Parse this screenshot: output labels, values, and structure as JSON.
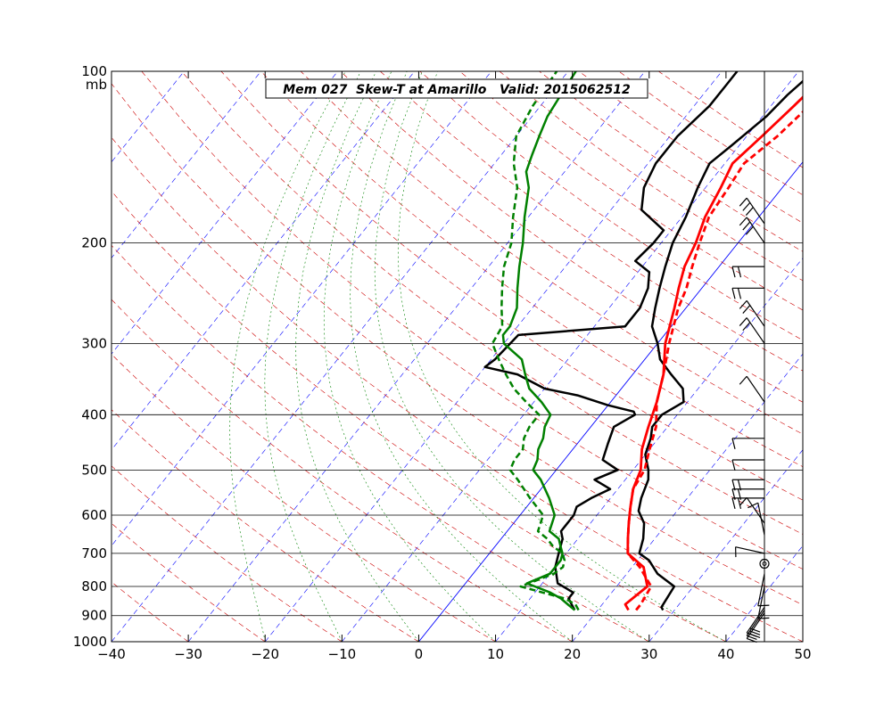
{
  "chart_data": {
    "type": "skew-t",
    "title": "Mem 027  Skew-T at Amarillo   Valid: 2015062512",
    "pressure_unit": "mb",
    "x_range": [
      -40,
      50
    ],
    "x_ticks": [
      -40,
      -30,
      -20,
      -10,
      0,
      10,
      20,
      30,
      40,
      50
    ],
    "pressure_levels": [
      1000,
      900,
      800,
      700,
      600,
      500,
      400,
      300,
      200,
      100
    ],
    "pressure_labels": [
      "100",
      "200",
      "300",
      "400",
      "500",
      "600",
      "700",
      "800",
      "900",
      "1000"
    ],
    "grid_levels": [
      900,
      800,
      700,
      600,
      500,
      400,
      300,
      200
    ],
    "colors": {
      "temperature": "#ff0000",
      "dewpoint": "#008000",
      "ensemble": "#000000",
      "dry_adiabat": "#cc0000",
      "moist_adiabat": "#008000",
      "isotherm": "#0000ff",
      "zero_isotherm": "#0000ff"
    },
    "series": [
      {
        "role": "ensemble-warm",
        "points": [
          [
            880,
            28.5
          ],
          [
            870,
            28
          ],
          [
            800,
            27.5
          ],
          [
            760,
            24
          ],
          [
            720,
            21.5
          ],
          [
            700,
            19.5
          ],
          [
            660,
            18.5
          ],
          [
            620,
            17
          ],
          [
            590,
            15
          ],
          [
            560,
            14
          ],
          [
            520,
            13
          ],
          [
            500,
            12
          ],
          [
            470,
            10
          ],
          [
            440,
            9
          ],
          [
            420,
            8
          ],
          [
            400,
            8
          ],
          [
            380,
            9.5
          ],
          [
            360,
            8
          ],
          [
            340,
            5
          ],
          [
            320,
            2
          ],
          [
            300,
            0
          ],
          [
            280,
            -2.5
          ],
          [
            260,
            -4
          ],
          [
            240,
            -5.5
          ],
          [
            220,
            -7
          ],
          [
            200,
            -8.5
          ],
          [
            180,
            -9.5
          ],
          [
            160,
            -11
          ],
          [
            145,
            -12
          ],
          [
            135,
            -11
          ],
          [
            120,
            -9.5
          ],
          [
            110,
            -9
          ],
          [
            100,
            -8
          ]
        ]
      },
      {
        "role": "ensemble-cold",
        "points": [
          [
            880,
            17
          ],
          [
            860,
            16
          ],
          [
            840,
            15
          ],
          [
            820,
            15
          ],
          [
            790,
            12
          ],
          [
            740,
            10
          ],
          [
            700,
            9
          ],
          [
            660,
            8
          ],
          [
            640,
            7
          ],
          [
            600,
            7
          ],
          [
            580,
            6.5
          ],
          [
            560,
            7.5
          ],
          [
            540,
            9
          ],
          [
            520,
            6
          ],
          [
            500,
            8
          ],
          [
            480,
            5
          ],
          [
            450,
            4
          ],
          [
            420,
            3
          ],
          [
            400,
            4.5
          ],
          [
            395,
            4
          ],
          [
            385,
            0
          ],
          [
            370,
            -5
          ],
          [
            360,
            -10
          ],
          [
            340,
            -15
          ],
          [
            330,
            -20
          ],
          [
            320,
            -19.5
          ],
          [
            290,
            -19
          ],
          [
            280,
            -6
          ],
          [
            260,
            -6
          ],
          [
            240,
            -7
          ],
          [
            225,
            -8.5
          ],
          [
            215,
            -11.5
          ],
          [
            200,
            -11
          ],
          [
            190,
            -11
          ],
          [
            175,
            -16
          ],
          [
            160,
            -18
          ],
          [
            145,
            -19
          ],
          [
            130,
            -19
          ],
          [
            115,
            -18
          ],
          [
            105,
            -18
          ],
          [
            100,
            -18
          ]
        ]
      },
      {
        "role": "temperature",
        "points": [
          [
            880,
            24
          ],
          [
            860,
            23
          ],
          [
            800,
            24
          ],
          [
            740,
            21.5
          ],
          [
            700,
            18
          ],
          [
            660,
            16.5
          ],
          [
            620,
            15
          ],
          [
            580,
            13.5
          ],
          [
            540,
            12
          ],
          [
            500,
            11
          ],
          [
            460,
            9
          ],
          [
            420,
            7.5
          ],
          [
            380,
            6
          ],
          [
            340,
            4
          ],
          [
            300,
            1
          ],
          [
            260,
            -1.5
          ],
          [
            240,
            -3
          ],
          [
            220,
            -4.5
          ],
          [
            200,
            -5.5
          ],
          [
            180,
            -7
          ],
          [
            160,
            -8
          ],
          [
            145,
            -9
          ],
          [
            130,
            -8
          ],
          [
            115,
            -7
          ],
          [
            100,
            -6
          ]
        ]
      },
      {
        "role": "temperature-mean",
        "points": [
          [
            880,
            25
          ],
          [
            860,
            25
          ],
          [
            800,
            24.5
          ],
          [
            740,
            21
          ],
          [
            700,
            18
          ],
          [
            660,
            16.5
          ],
          [
            620,
            15
          ],
          [
            580,
            13.5
          ],
          [
            540,
            12
          ],
          [
            500,
            11.5
          ],
          [
            460,
            10
          ],
          [
            420,
            8.5
          ],
          [
            380,
            6
          ],
          [
            340,
            4
          ],
          [
            300,
            1.5
          ],
          [
            260,
            -1
          ],
          [
            240,
            -2
          ],
          [
            220,
            -3.5
          ],
          [
            200,
            -5
          ],
          [
            180,
            -6.5
          ],
          [
            160,
            -7
          ],
          [
            145,
            -7.5
          ],
          [
            130,
            -6
          ],
          [
            115,
            -5
          ],
          [
            100,
            -3
          ]
        ]
      },
      {
        "role": "dewpoint",
        "points": [
          [
            880,
            17
          ],
          [
            860,
            15.5
          ],
          [
            840,
            14
          ],
          [
            820,
            12
          ],
          [
            790,
            8
          ],
          [
            760,
            10
          ],
          [
            740,
            10
          ],
          [
            720,
            10
          ],
          [
            700,
            9.5
          ],
          [
            680,
            8.5
          ],
          [
            660,
            7.5
          ],
          [
            640,
            5.5
          ],
          [
            600,
            4.5
          ],
          [
            560,
            2
          ],
          [
            520,
            -1
          ],
          [
            500,
            -3
          ],
          [
            480,
            -3.5
          ],
          [
            460,
            -4.5
          ],
          [
            440,
            -5
          ],
          [
            420,
            -6
          ],
          [
            400,
            -6.5
          ],
          [
            380,
            -9
          ],
          [
            360,
            -12
          ],
          [
            340,
            -14
          ],
          [
            320,
            -16
          ],
          [
            300,
            -20
          ],
          [
            290,
            -21
          ],
          [
            280,
            -21
          ],
          [
            260,
            -22
          ],
          [
            240,
            -24
          ],
          [
            220,
            -26
          ],
          [
            200,
            -28
          ],
          [
            180,
            -30.5
          ],
          [
            160,
            -33
          ],
          [
            150,
            -35
          ],
          [
            140,
            -36
          ],
          [
            130,
            -37
          ],
          [
            120,
            -38
          ],
          [
            110,
            -38.5
          ],
          [
            100,
            -39
          ]
        ]
      },
      {
        "role": "dewpoint-mean",
        "points": [
          [
            880,
            17.5
          ],
          [
            860,
            16.5
          ],
          [
            840,
            14.5
          ],
          [
            820,
            11
          ],
          [
            800,
            7.5
          ],
          [
            780,
            9
          ],
          [
            760,
            10.5
          ],
          [
            740,
            11
          ],
          [
            720,
            10.5
          ],
          [
            700,
            9.5
          ],
          [
            680,
            7.5
          ],
          [
            660,
            6
          ],
          [
            640,
            4
          ],
          [
            600,
            3
          ],
          [
            560,
            -0.5
          ],
          [
            520,
            -4
          ],
          [
            500,
            -6
          ],
          [
            480,
            -6.5
          ],
          [
            460,
            -6.5
          ],
          [
            440,
            -7.5
          ],
          [
            420,
            -8
          ],
          [
            400,
            -8
          ],
          [
            380,
            -11
          ],
          [
            360,
            -14
          ],
          [
            340,
            -16.5
          ],
          [
            320,
            -19
          ],
          [
            300,
            -21.5
          ],
          [
            280,
            -22
          ],
          [
            260,
            -24
          ],
          [
            240,
            -26
          ],
          [
            220,
            -28
          ],
          [
            200,
            -29.5
          ],
          [
            180,
            -32
          ],
          [
            160,
            -34.5
          ],
          [
            145,
            -37.5
          ],
          [
            130,
            -40
          ],
          [
            115,
            -41
          ],
          [
            100,
            -41.5
          ]
        ]
      }
    ],
    "wind_barbs": [
      {
        "pressure": 890,
        "barbs": 2,
        "dir": "sw"
      },
      {
        "pressure": 880,
        "barbs": 2,
        "dir": "sw"
      },
      {
        "pressure": 870,
        "barbs": 2,
        "dir": "sw"
      },
      {
        "pressure": 800,
        "barbs": 1,
        "dir": "s"
      },
      {
        "pressure": 760,
        "barbs": 1,
        "dir": "s"
      },
      {
        "pressure": 730,
        "barbs": 0,
        "dir": "calm"
      },
      {
        "pressure": 700,
        "barbs": 1,
        "dir": "ne"
      },
      {
        "pressure": 650,
        "barbs": 1,
        "dir": "n"
      },
      {
        "pressure": 620,
        "barbs": 1,
        "dir": "nw"
      },
      {
        "pressure": 560,
        "barbs": 2,
        "dir": "w"
      },
      {
        "pressure": 540,
        "barbs": 2,
        "dir": "w"
      },
      {
        "pressure": 520,
        "barbs": 2,
        "dir": "w"
      },
      {
        "pressure": 480,
        "barbs": 1,
        "dir": "w"
      },
      {
        "pressure": 440,
        "barbs": 1,
        "dir": "w"
      },
      {
        "pressure": 380,
        "barbs": 1,
        "dir": "nw"
      },
      {
        "pressure": 300,
        "barbs": 2,
        "dir": "nw"
      },
      {
        "pressure": 280,
        "barbs": 2,
        "dir": "nw"
      },
      {
        "pressure": 240,
        "barbs": 2,
        "dir": "w"
      },
      {
        "pressure": 220,
        "barbs": 2,
        "dir": "w"
      },
      {
        "pressure": 200,
        "barbs": 3,
        "dir": "nw"
      },
      {
        "pressure": 185,
        "barbs": 3,
        "dir": "nw"
      }
    ],
    "grid": true,
    "legend": "none"
  }
}
